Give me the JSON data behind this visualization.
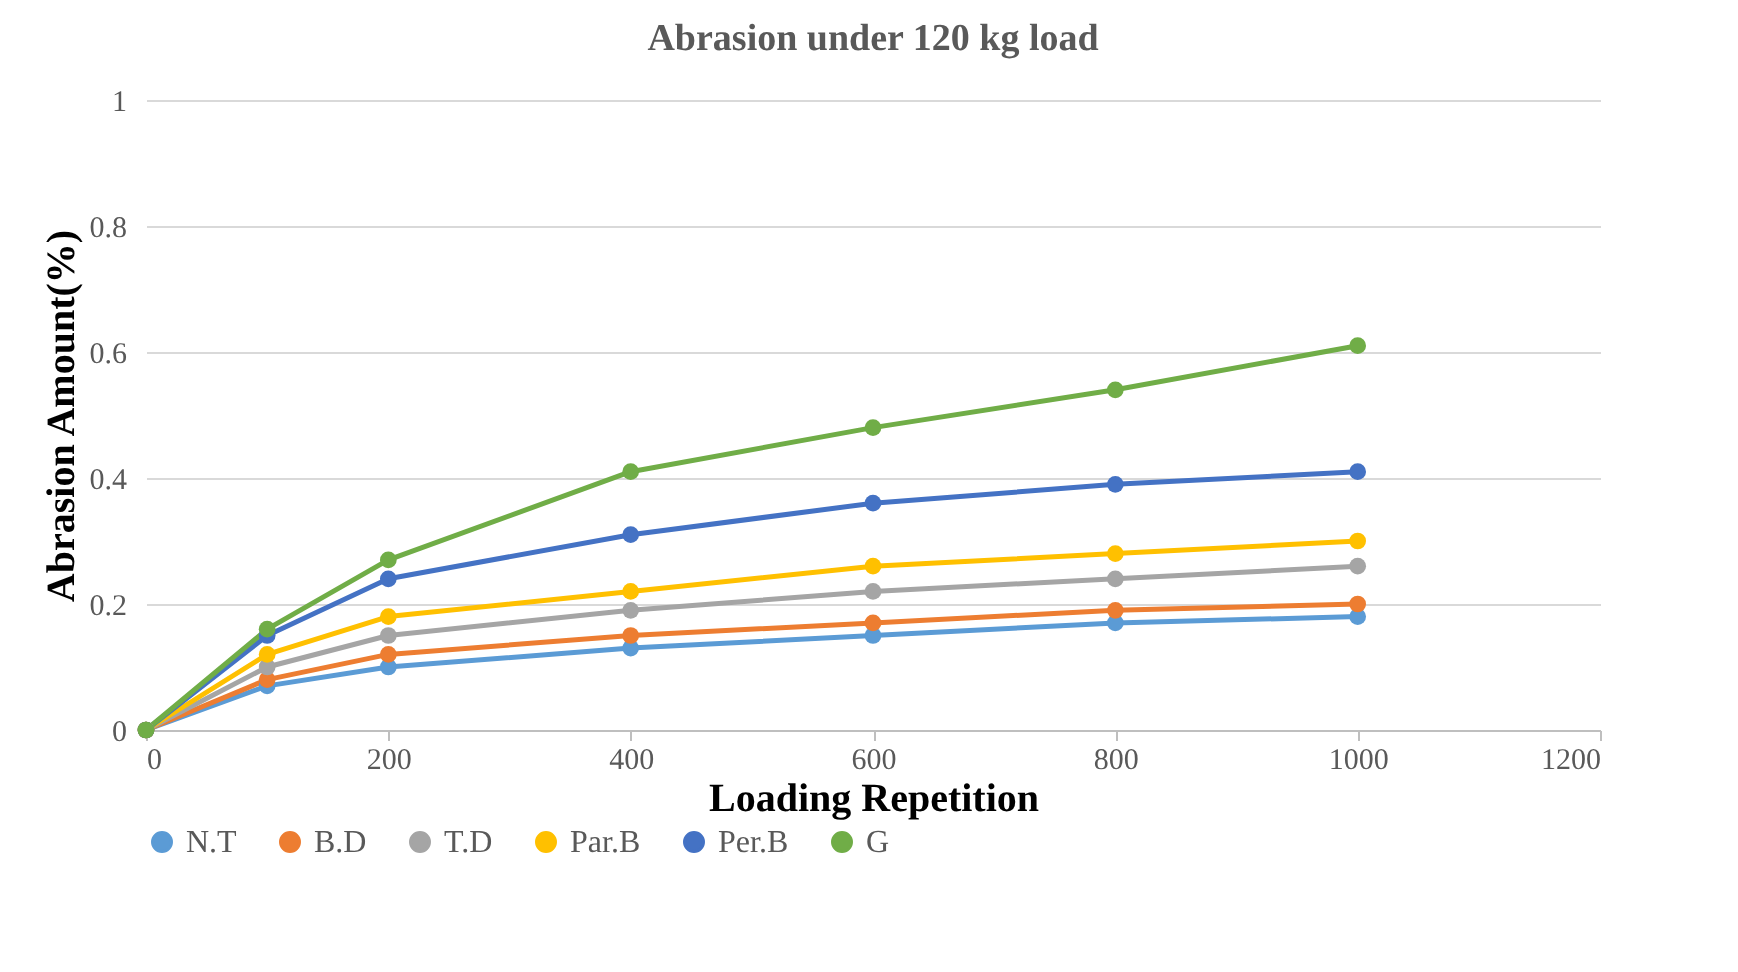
{
  "chart_data": {
    "type": "line",
    "title": "Abrasion under 120 kg load",
    "xlabel": "Loading Repetition",
    "ylabel": "Abrasion Amount(%)",
    "x": [
      0,
      100,
      200,
      400,
      600,
      800,
      1000
    ],
    "series": [
      {
        "name": "N.T",
        "color": "#5b9bd5",
        "values": [
          0,
          0.07,
          0.1,
          0.13,
          0.15,
          0.17,
          0.18
        ]
      },
      {
        "name": "B.D",
        "color": "#ed7d31",
        "values": [
          0,
          0.08,
          0.12,
          0.15,
          0.17,
          0.19,
          0.2
        ]
      },
      {
        "name": "T.D",
        "color": "#a5a5a5",
        "values": [
          0,
          0.1,
          0.15,
          0.19,
          0.22,
          0.24,
          0.26
        ]
      },
      {
        "name": "Par.B",
        "color": "#ffc000",
        "values": [
          0,
          0.12,
          0.18,
          0.22,
          0.26,
          0.28,
          0.3
        ]
      },
      {
        "name": "Per.B",
        "color": "#4472c4",
        "values": [
          0,
          0.15,
          0.24,
          0.31,
          0.36,
          0.39,
          0.41
        ]
      },
      {
        "name": "G",
        "color": "#70ad47",
        "values": [
          0,
          0.16,
          0.27,
          0.41,
          0.48,
          0.54,
          0.61
        ]
      }
    ],
    "xlim": [
      0,
      1200
    ],
    "xticks": [
      0,
      200,
      400,
      600,
      800,
      1000,
      1200
    ],
    "ylim": [
      0,
      1
    ],
    "yticks": [
      0,
      0.2,
      0.4,
      0.6,
      0.8,
      1
    ],
    "grid": "y",
    "legend": "bottom",
    "marker": "circle",
    "line_style": "solid"
  }
}
